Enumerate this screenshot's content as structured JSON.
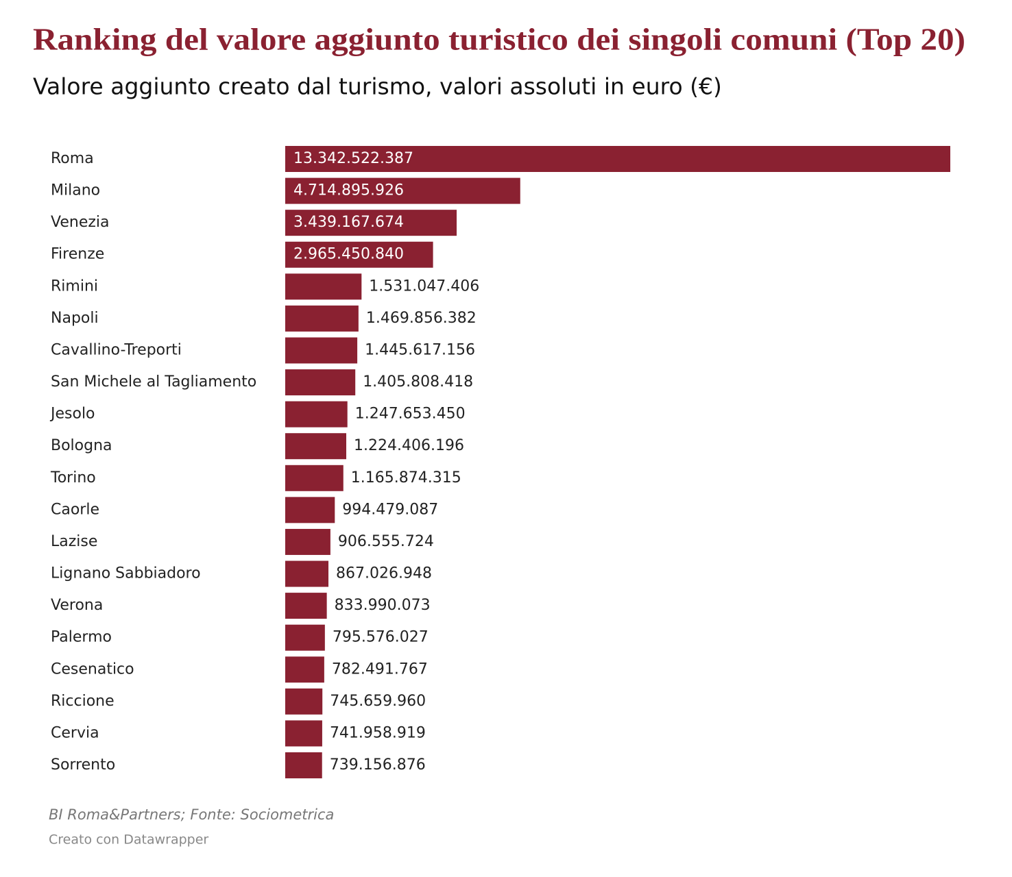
{
  "chart_data": {
    "type": "bar",
    "title": "Ranking del valore aggiunto turistico dei singoli comuni (Top 20)",
    "subtitle": "Valore aggiunto creato dal turismo, valori assoluti in euro (€)",
    "source": "BI Roma&Partners; Fonte: Sociometrica",
    "credit": "Creato con Datawrapper",
    "color": "#8a2131",
    "categories": [
      "Roma",
      "Milano",
      "Venezia",
      "Firenze",
      "Rimini",
      "Napoli",
      "Cavallino-Treporti",
      "San Michele al Tagliamento",
      "Jesolo",
      "Bologna",
      "Torino",
      "Caorle",
      "Lazise",
      "Lignano Sabbiadoro",
      "Verona",
      "Palermo",
      "Cesenatico",
      "Riccione",
      "Cervia",
      "Sorrento"
    ],
    "values": [
      13342522387,
      4714895926,
      3439167674,
      2965450840,
      1531047406,
      1469856382,
      1445617156,
      1405808418,
      1247653450,
      1224406196,
      1165874315,
      994479087,
      906555724,
      867026948,
      833990073,
      795576027,
      782491767,
      745659960,
      741958919,
      739156876
    ],
    "value_labels": [
      "13.342.522.387",
      "4.714.895.926",
      "3.439.167.674",
      "2.965.450.840",
      "1.531.047.406",
      "1.469.856.382",
      "1.445.617.156",
      "1.405.808.418",
      "1.247.653.450",
      "1.224.406.196",
      "1.165.874.315",
      "994.479.087",
      "906.555.724",
      "867.026.948",
      "833.990.073",
      "795.576.027",
      "782.491.767",
      "745.659.960",
      "741.958.919",
      "739.156.876"
    ]
  }
}
